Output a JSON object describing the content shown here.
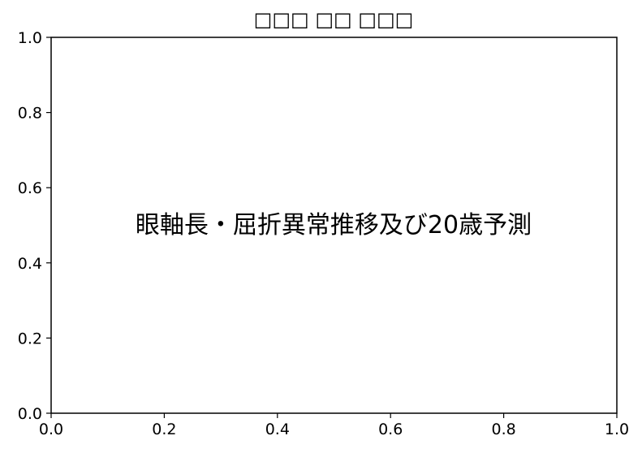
{
  "chart_data": {
    "type": "line",
    "title": "□□□ □□ □□□",
    "annotation": "眼軸長・屈折異常推移及び20歳予測",
    "xlabel": "",
    "ylabel": "",
    "xlim": [
      0.0,
      1.0
    ],
    "ylim": [
      0.0,
      1.0
    ],
    "x_ticks": [
      "0.0",
      "0.2",
      "0.4",
      "0.6",
      "0.8",
      "1.0"
    ],
    "y_ticks": [
      "0.0",
      "0.2",
      "0.4",
      "0.6",
      "0.8",
      "1.0"
    ],
    "series": [],
    "grid": false,
    "legend": "none"
  }
}
